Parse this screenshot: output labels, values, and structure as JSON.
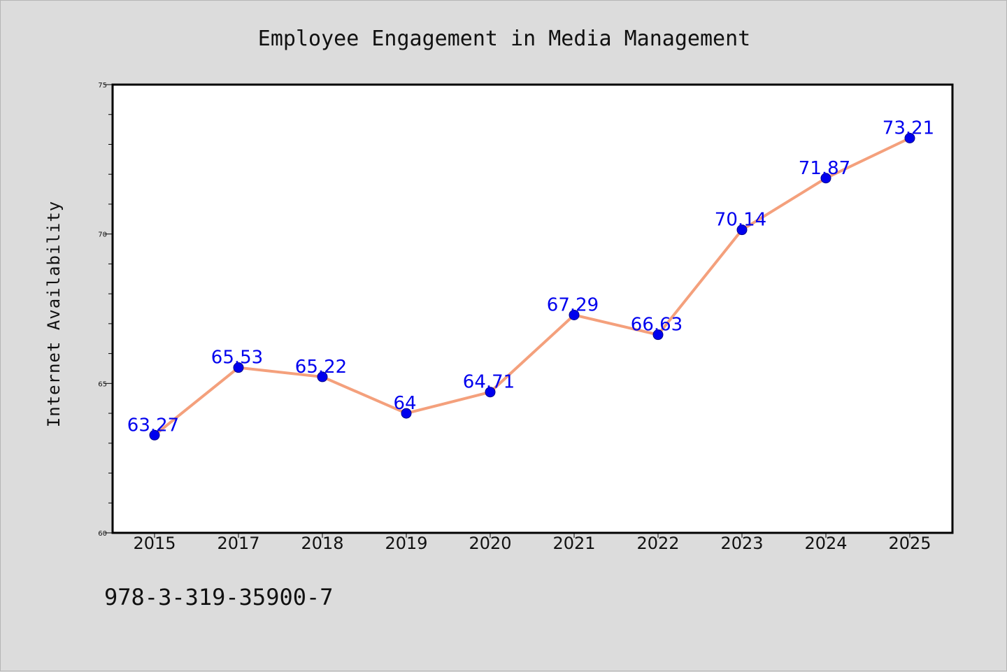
{
  "chart_data": {
    "type": "line",
    "title": "Employee Engagement in Media Management",
    "xlabel": "",
    "ylabel": "Internet Availability",
    "categories": [
      "2015",
      "2017",
      "2018",
      "2019",
      "2020",
      "2021",
      "2022",
      "2023",
      "2024",
      "2025"
    ],
    "series": [
      {
        "values": [
          63.27,
          65.53,
          65.22,
          64,
          64.71,
          67.29,
          66.63,
          70.14,
          71.87,
          73.21
        ],
        "data_labels": [
          "63.27",
          "65.53",
          "65.22",
          "64",
          "64.71",
          "67.29",
          "66.63",
          "70.14",
          "71.87",
          "73.21"
        ]
      }
    ],
    "ylim": [
      60,
      75
    ],
    "yticks": [
      60,
      65,
      70,
      75
    ],
    "y_minor_step": 1,
    "grid": false,
    "legend": "none",
    "colors": {
      "line": "#f4a07c",
      "marker": "#0000ee",
      "data_label": "#0000ee",
      "background": "#dcdcdc",
      "plot_area": "#ffffff"
    }
  },
  "footer": {
    "isbn": "978-3-319-35900-7"
  }
}
